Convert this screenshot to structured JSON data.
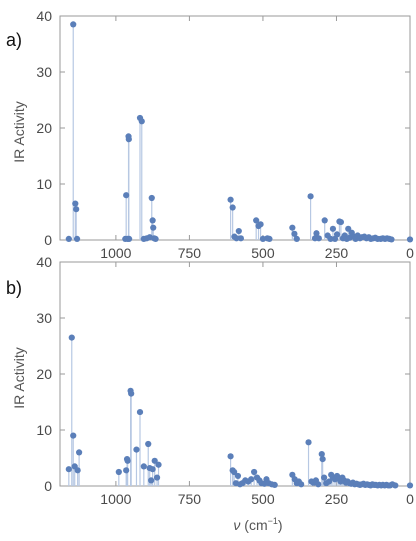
{
  "figure": {
    "xlabel_var": "ν",
    "xlabel_unit_open": " (cm",
    "xlabel_unit_exp": "−1",
    "xlabel_unit_close": ")"
  },
  "chart_data": [
    {
      "type": "scatter",
      "panel_label": "a)",
      "ylabel": "IR Activity",
      "xlim": [
        1190,
        0
      ],
      "ylim": [
        0,
        40
      ],
      "xticks": [
        1000,
        750,
        500,
        250,
        0
      ],
      "yticks": [
        0,
        10,
        20,
        30,
        40
      ],
      "show_xtick_labels": true,
      "stems": true,
      "marker_color": "#5b7fb9",
      "stem_color": "#b7c8e3",
      "points": [
        [
          1160,
          0.2
        ],
        [
          1145,
          38.5
        ],
        [
          1138,
          6.5
        ],
        [
          1135,
          5.5
        ],
        [
          1132,
          0.2
        ],
        [
          968,
          0.2
        ],
        [
          965,
          8
        ],
        [
          960,
          0.2
        ],
        [
          957,
          18.5
        ],
        [
          956,
          18
        ],
        [
          955,
          0.2
        ],
        [
          918,
          21.8
        ],
        [
          912,
          21.2
        ],
        [
          905,
          0.2
        ],
        [
          895,
          0.3
        ],
        [
          885,
          0.5
        ],
        [
          878,
          7.5
        ],
        [
          875,
          3.5
        ],
        [
          873,
          2.2
        ],
        [
          870,
          0.3
        ],
        [
          865,
          0.2
        ],
        [
          610,
          7.2
        ],
        [
          603,
          5.8
        ],
        [
          597,
          0.6
        ],
        [
          590,
          0.3
        ],
        [
          582,
          1.6
        ],
        [
          575,
          0.3
        ],
        [
          523,
          3.5
        ],
        [
          515,
          2.5
        ],
        [
          508,
          2.8
        ],
        [
          500,
          0.2
        ],
        [
          485,
          0.3
        ],
        [
          478,
          0.2
        ],
        [
          400,
          2.2
        ],
        [
          393,
          1.1
        ],
        [
          385,
          0.2
        ],
        [
          338,
          7.8
        ],
        [
          323,
          0.3
        ],
        [
          318,
          1.2
        ],
        [
          310,
          0.3
        ],
        [
          290,
          3.5
        ],
        [
          280,
          0.8
        ],
        [
          270,
          0.2
        ],
        [
          262,
          2.0
        ],
        [
          255,
          0.2
        ],
        [
          248,
          1.0
        ],
        [
          240,
          3.3
        ],
        [
          235,
          3.2
        ],
        [
          228,
          0.3
        ],
        [
          222,
          0.8
        ],
        [
          215,
          0.2
        ],
        [
          210,
          2.0
        ],
        [
          205,
          0.4
        ],
        [
          198,
          1.3
        ],
        [
          190,
          0.6
        ],
        [
          185,
          0.2
        ],
        [
          178,
          0.8
        ],
        [
          170,
          0.3
        ],
        [
          163,
          0.5
        ],
        [
          155,
          0.6
        ],
        [
          148,
          0.3
        ],
        [
          140,
          0.5
        ],
        [
          133,
          0.2
        ],
        [
          125,
          0.3
        ],
        [
          118,
          0.4
        ],
        [
          110,
          0.2
        ],
        [
          100,
          0.2
        ],
        [
          92,
          0.3
        ],
        [
          85,
          0.2
        ],
        [
          78,
          0.3
        ],
        [
          70,
          0.2
        ],
        [
          63,
          0.1
        ],
        [
          0,
          0.1
        ]
      ]
    },
    {
      "type": "scatter",
      "panel_label": "b)",
      "ylabel": "IR Activity",
      "xlim": [
        1190,
        0
      ],
      "ylim": [
        0,
        40
      ],
      "xticks": [
        1000,
        750,
        500,
        250,
        0
      ],
      "yticks": [
        0,
        10,
        20,
        30,
        40
      ],
      "show_xtick_labels": true,
      "stems": true,
      "marker_color": "#5b7fb9",
      "stem_color": "#b7c8e3",
      "points": [
        [
          1160,
          3.0
        ],
        [
          1150,
          26.5
        ],
        [
          1145,
          9.0
        ],
        [
          1140,
          3.5
        ],
        [
          1130,
          2.8
        ],
        [
          1125,
          6.0
        ],
        [
          990,
          2.5
        ],
        [
          965,
          2.8
        ],
        [
          962,
          4.8
        ],
        [
          960,
          4.5
        ],
        [
          950,
          17.0
        ],
        [
          948,
          16.5
        ],
        [
          930,
          6.5
        ],
        [
          918,
          13.2
        ],
        [
          905,
          3.5
        ],
        [
          890,
          7.5
        ],
        [
          885,
          3.2
        ],
        [
          880,
          1.0
        ],
        [
          875,
          3.0
        ],
        [
          868,
          4.5
        ],
        [
          860,
          1.5
        ],
        [
          855,
          3.8
        ],
        [
          610,
          5.3
        ],
        [
          603,
          2.8
        ],
        [
          598,
          2.5
        ],
        [
          592,
          0.5
        ],
        [
          585,
          1.8
        ],
        [
          578,
          0.3
        ],
        [
          570,
          0.5
        ],
        [
          560,
          1.0
        ],
        [
          550,
          0.8
        ],
        [
          540,
          1.2
        ],
        [
          530,
          2.5
        ],
        [
          520,
          1.5
        ],
        [
          512,
          1.0
        ],
        [
          505,
          0.5
        ],
        [
          495,
          0.4
        ],
        [
          488,
          1.2
        ],
        [
          480,
          0.5
        ],
        [
          470,
          0.3
        ],
        [
          460,
          0.2
        ],
        [
          400,
          2.0
        ],
        [
          392,
          1.2
        ],
        [
          385,
          0.5
        ],
        [
          378,
          0.8
        ],
        [
          370,
          0.3
        ],
        [
          345,
          7.8
        ],
        [
          335,
          0.8
        ],
        [
          328,
          0.6
        ],
        [
          320,
          1.0
        ],
        [
          312,
          0.3
        ],
        [
          300,
          5.7
        ],
        [
          297,
          4.8
        ],
        [
          292,
          1.5
        ],
        [
          285,
          0.5
        ],
        [
          275,
          0.8
        ],
        [
          268,
          2.0
        ],
        [
          262,
          1.5
        ],
        [
          255,
          1.2
        ],
        [
          248,
          1.8
        ],
        [
          242,
          1.3
        ],
        [
          236,
          0.8
        ],
        [
          230,
          1.5
        ],
        [
          224,
          1.0
        ],
        [
          218,
          0.6
        ],
        [
          212,
          0.8
        ],
        [
          206,
          0.5
        ],
        [
          200,
          0.4
        ],
        [
          194,
          0.6
        ],
        [
          188,
          0.3
        ],
        [
          182,
          0.4
        ],
        [
          176,
          0.3
        ],
        [
          170,
          0.2
        ],
        [
          164,
          0.3
        ],
        [
          158,
          0.4
        ],
        [
          152,
          0.2
        ],
        [
          146,
          0.3
        ],
        [
          140,
          0.2
        ],
        [
          134,
          0.1
        ],
        [
          128,
          0.3
        ],
        [
          122,
          0.2
        ],
        [
          116,
          0.2
        ],
        [
          110,
          0.1
        ],
        [
          104,
          0.2
        ],
        [
          98,
          0.1
        ],
        [
          92,
          0.2
        ],
        [
          86,
          0.1
        ],
        [
          80,
          0.2
        ],
        [
          74,
          0.1
        ],
        [
          68,
          0.1
        ],
        [
          60,
          0.3
        ],
        [
          50,
          0.1
        ],
        [
          0,
          0.1
        ]
      ]
    }
  ]
}
